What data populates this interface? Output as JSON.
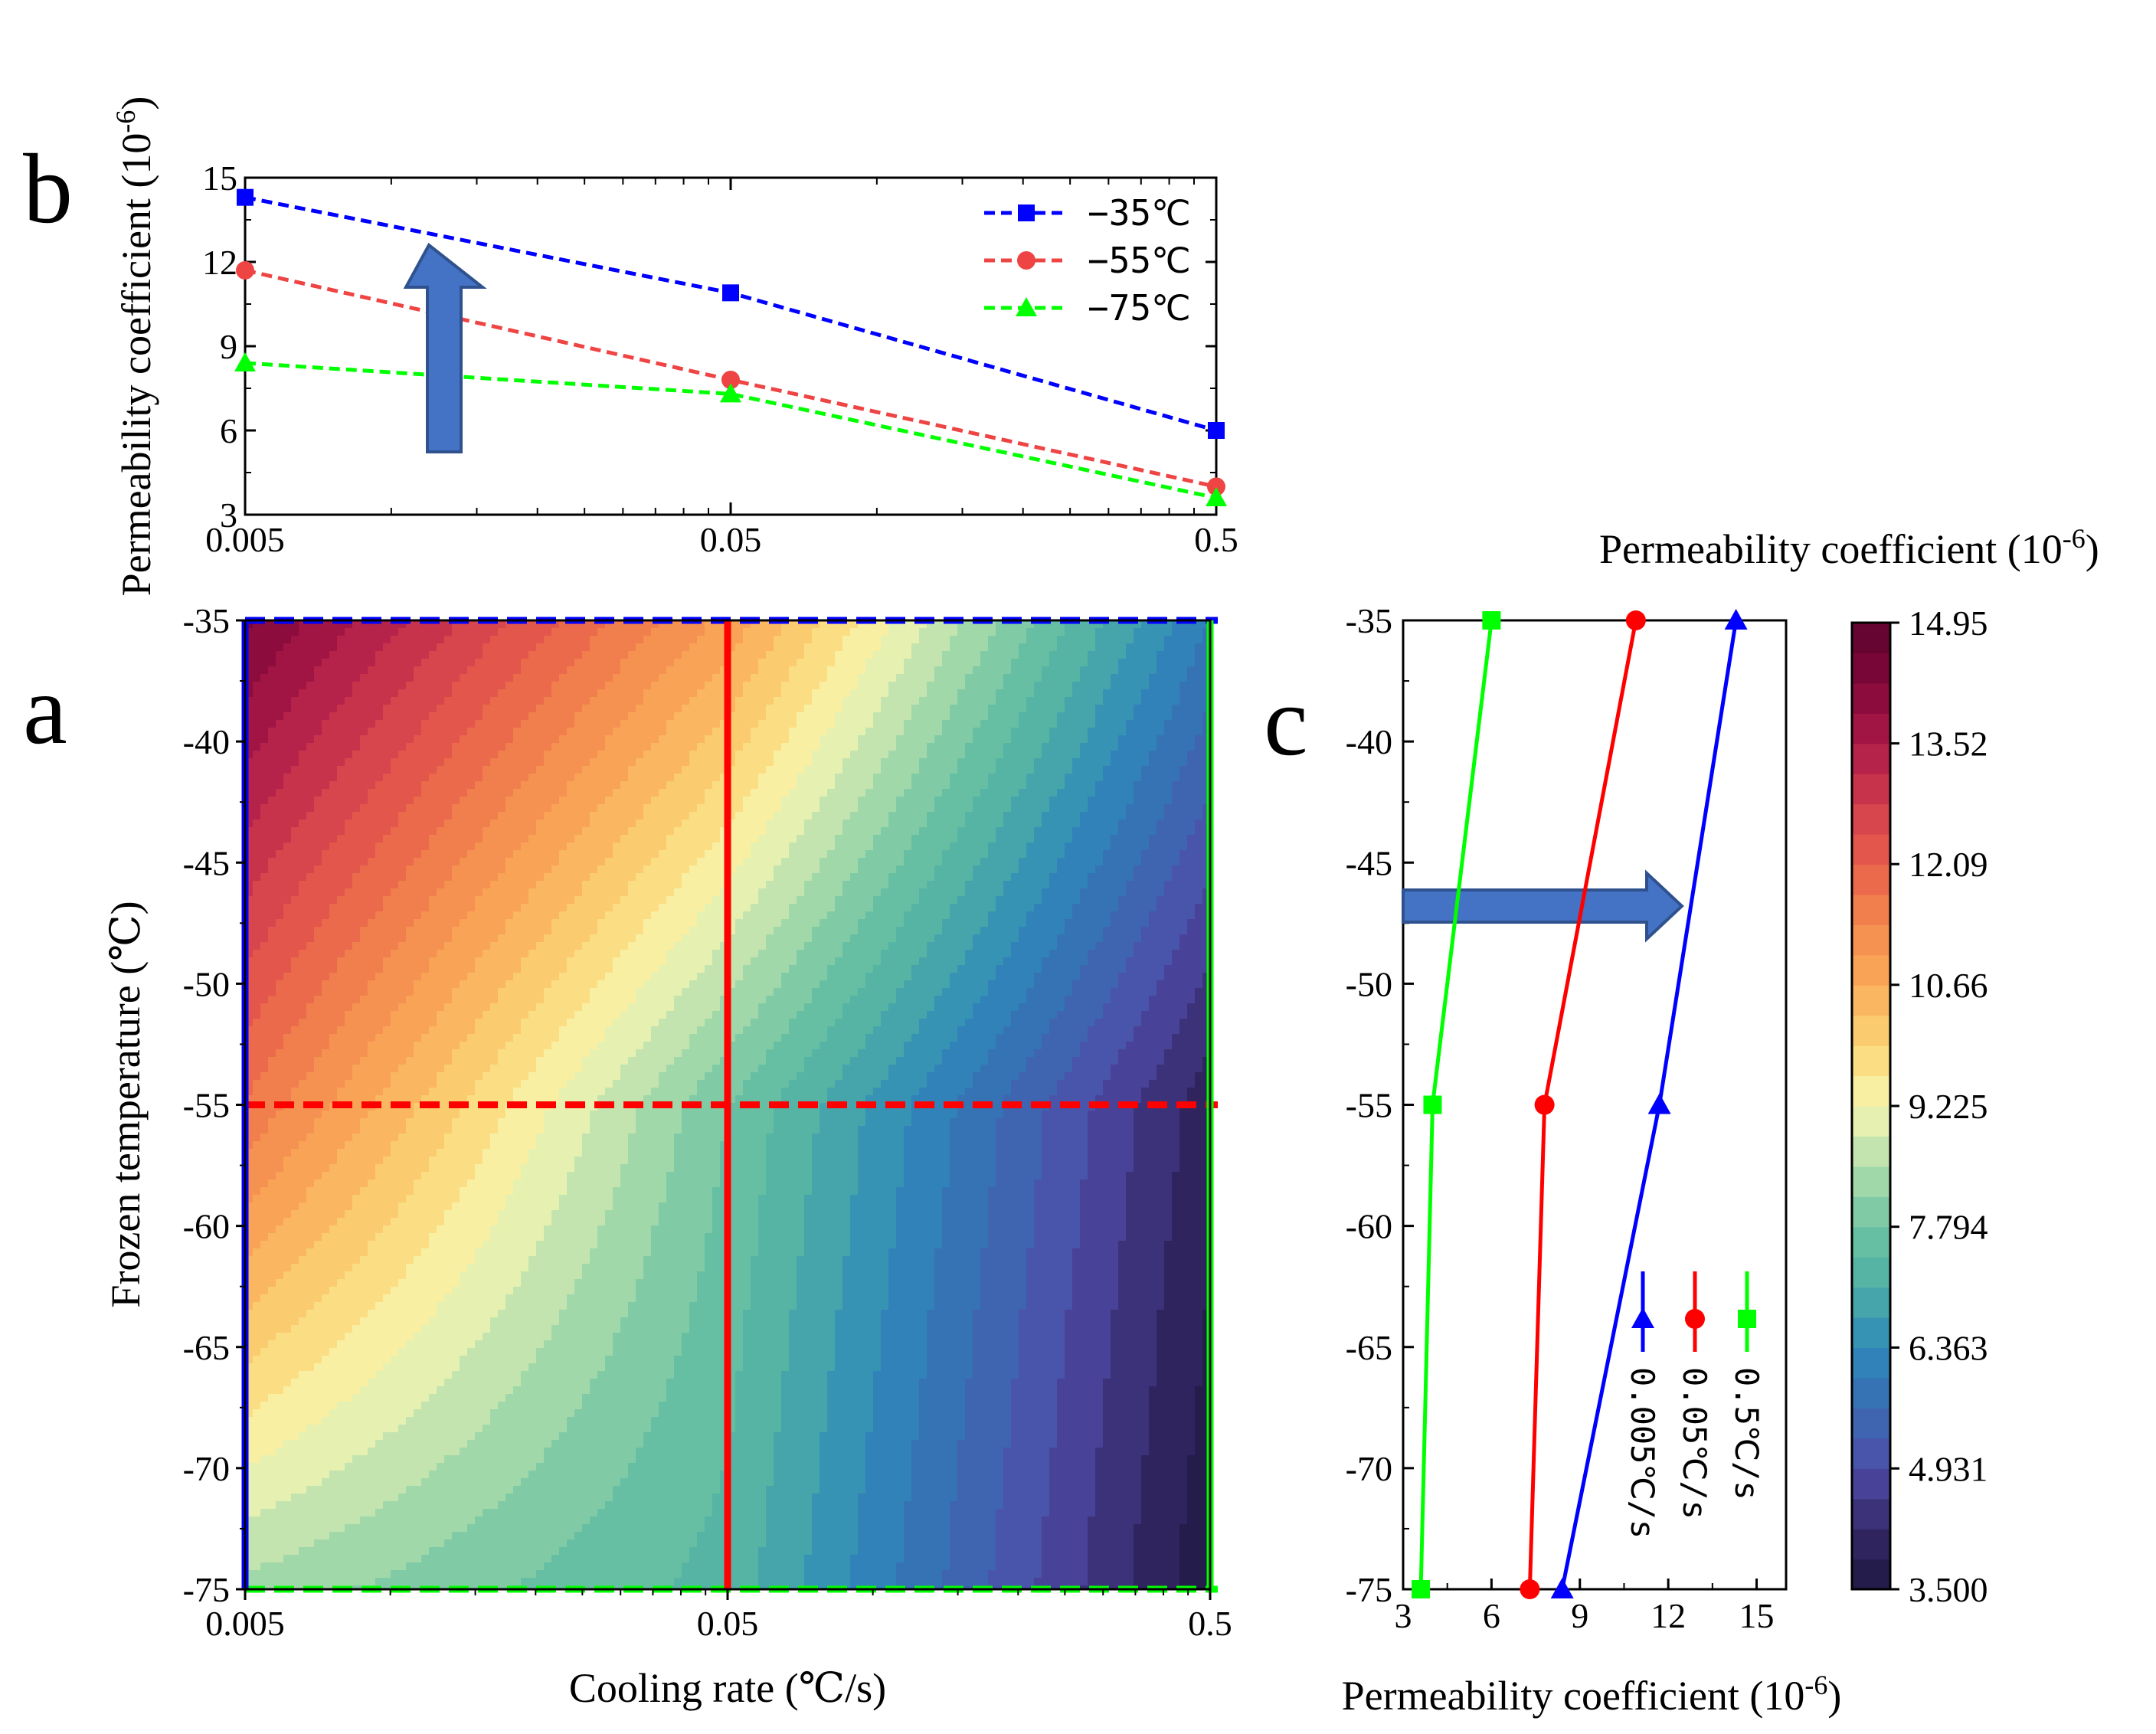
{
  "panel_letters": {
    "a": "a",
    "b": "b",
    "c": "c"
  },
  "chart_data": [
    {
      "id": "b",
      "type": "line",
      "xscale": "log",
      "categories": [
        "0.005",
        "0.05",
        "0.5"
      ],
      "x": [
        0.005,
        0.05,
        0.5
      ],
      "xlim": [
        0.005,
        0.5
      ],
      "ylim": [
        3,
        15
      ],
      "yticks": [
        "3",
        "6",
        "9",
        "12",
        "15"
      ],
      "xlabel": "",
      "ylabel": "Permeability coefficient (10",
      "ylabel_sup": "-6",
      "ylabel_close": ")",
      "legend_position": "top-right",
      "series": [
        {
          "name": "−35℃",
          "color": "#0000ff",
          "marker": "square",
          "values": [
            14.3,
            10.9,
            6.0
          ]
        },
        {
          "name": "−55℃",
          "color": "#ef4444",
          "marker": "circle",
          "values": [
            11.7,
            7.8,
            4.0
          ]
        },
        {
          "name": "−75℃",
          "color": "#00ff00",
          "marker": "triangle",
          "values": [
            8.4,
            7.3,
            3.6
          ]
        }
      ],
      "annotation": "upward arrow"
    },
    {
      "id": "a",
      "type": "heatmap",
      "xscale": "log",
      "xlabel": "Cooling rate (℃/s)",
      "ylabel": "Frozen temperature (℃)",
      "xticks": [
        "0.005",
        "0.05",
        "0.5"
      ],
      "x": [
        0.005,
        0.05,
        0.5
      ],
      "y": [
        -35,
        -55,
        -75
      ],
      "yticks": [
        "-35",
        "-40",
        "-45",
        "-50",
        "-55",
        "-60",
        "-65",
        "-70",
        "-75"
      ],
      "ylim": [
        -75,
        -35
      ],
      "z": [
        [
          14.3,
          10.9,
          6.0
        ],
        [
          11.7,
          7.8,
          4.0
        ],
        [
          8.4,
          7.3,
          3.6
        ]
      ],
      "guide_lines": [
        {
          "orientation": "horizontal",
          "value": -35,
          "color": "#0000ff",
          "style": "dashed"
        },
        {
          "orientation": "horizontal",
          "value": -55,
          "color": "#ff0000",
          "style": "dashed"
        },
        {
          "orientation": "horizontal",
          "value": -75,
          "color": "#00ff00",
          "style": "dashed"
        },
        {
          "orientation": "vertical",
          "value": 0.005,
          "color": "#0000ff",
          "style": "solid"
        },
        {
          "orientation": "vertical",
          "value": 0.05,
          "color": "#ff0000",
          "style": "solid"
        },
        {
          "orientation": "vertical",
          "value": 0.5,
          "color": "#00ff00",
          "style": "solid"
        }
      ]
    },
    {
      "id": "c",
      "type": "line",
      "xlim": [
        3,
        16
      ],
      "xticks": [
        "3",
        "6",
        "9",
        "12",
        "15"
      ],
      "ylim": [
        -75,
        -35
      ],
      "yticks": [
        "-35",
        "-40",
        "-45",
        "-50",
        "-55",
        "-60",
        "-65",
        "-70",
        "-75"
      ],
      "xlabel": "Permeability coefficient (10",
      "xlabel_sup": "-6",
      "xlabel_close": ")",
      "y": [
        -35,
        -55,
        -75
      ],
      "series": [
        {
          "name": "0.005℃/s",
          "color": "#0000ff",
          "marker": "triangle",
          "values": [
            14.3,
            11.7,
            8.4
          ]
        },
        {
          "name": "0.05℃/s",
          "color": "#ff0000",
          "marker": "circle",
          "values": [
            10.9,
            7.8,
            7.3
          ]
        },
        {
          "name": "0.5℃/s",
          "color": "#00ff00",
          "marker": "square",
          "values": [
            6.0,
            4.0,
            3.6
          ]
        }
      ],
      "annotation": "rightward arrow"
    },
    {
      "id": "colorbar",
      "type": "colorbar",
      "title": "Permeability coefficient (10",
      "title_sup": "-6",
      "title_close": ")",
      "range": [
        3.5,
        14.95
      ],
      "tick_labels": [
        "14.95",
        "13.52",
        "12.09",
        "10.66",
        "9.225",
        "7.794",
        "6.363",
        "4.931",
        "3.500"
      ],
      "tick_values": [
        14.95,
        13.52,
        12.09,
        10.66,
        9.225,
        7.794,
        6.363,
        4.931,
        3.5
      ]
    }
  ],
  "colors": {
    "arrow_fill": "#4472c4",
    "arrow_stroke": "#2f528f"
  }
}
